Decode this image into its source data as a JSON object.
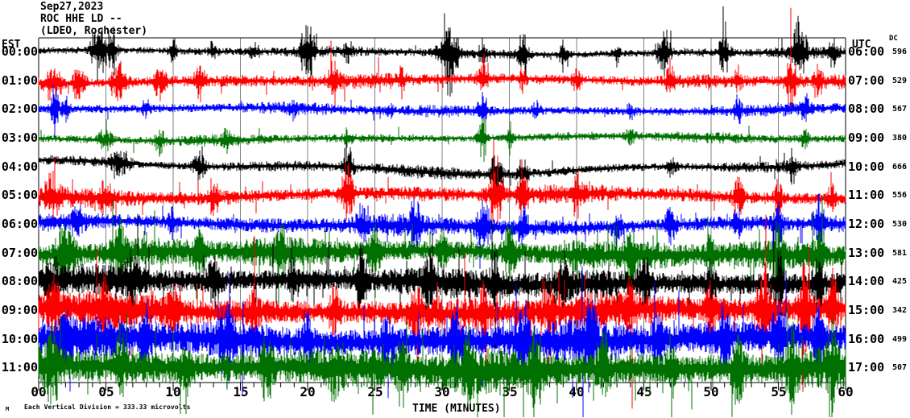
{
  "title_block": {
    "line1": "Sep27,2023",
    "line2": "ROC HHE LD --",
    "line3": "(LDEO, Rochester)"
  },
  "axes": {
    "est_header": "EST",
    "utc_header": "UTC",
    "dc_header": "DC",
    "x_label": "TIME (MINUTES)",
    "x_ticks": [
      "00",
      "05",
      "10",
      "15",
      "20",
      "25",
      "30",
      "35",
      "40",
      "45",
      "50",
      "55",
      "60"
    ]
  },
  "footer": {
    "marker": "M",
    "note": "Each Vertical Division = 333.33 microvolts"
  },
  "colors": {
    "black": "#000000",
    "red": "#ff0000",
    "blue": "#0000ff",
    "green": "#007000",
    "grid": "#808080",
    "frame": "#000000"
  },
  "chart_data": {
    "type": "line",
    "subtype": "helicorder-seismogram",
    "title": "ROC HHE LD -- (LDEO, Rochester) Sep27,2023",
    "xlabel": "TIME (MINUTES)",
    "x_range": [
      0,
      60
    ],
    "x_major_tick_minutes": 5,
    "x_minor_tick_minutes": 1,
    "grid": "vertical gray lines every 5 minutes",
    "scale_note": "Each Vertical Division = 333.33 microvolts",
    "rows": [
      {
        "est": "00:00",
        "utc": "06:00",
        "dc": "596",
        "color": "black",
        "render": {
          "seed": 11,
          "amp": 6,
          "wander": 2,
          "spike_prob": 0.02,
          "fat": 1.8,
          "events": [
            [
              4.5,
              38,
              6
            ],
            [
              5.5,
              30,
              4
            ],
            [
              10,
              22,
              3
            ],
            [
              13,
              14,
              3
            ],
            [
              16,
              10,
              4
            ],
            [
              20,
              40,
              5
            ],
            [
              23,
              12,
              3
            ],
            [
              30.5,
              48,
              7
            ],
            [
              33,
              15,
              3
            ],
            [
              36,
              36,
              4
            ],
            [
              39,
              16,
              3
            ],
            [
              43,
              12,
              3
            ],
            [
              46.5,
              34,
              5
            ],
            [
              51,
              30,
              4
            ],
            [
              56.5,
              40,
              6
            ],
            [
              59,
              18,
              3
            ]
          ]
        }
      },
      {
        "est": "01:00",
        "utc": "07:00",
        "dc": "529",
        "color": "red",
        "render": {
          "seed": 22,
          "amp": 8,
          "wander": 2,
          "spike_prob": 0.03,
          "fat": 1.8,
          "events": [
            [
              1,
              20,
              8
            ],
            [
              3,
              25,
              5
            ],
            [
              6,
              28,
              6
            ],
            [
              9,
              22,
              5
            ],
            [
              12,
              18,
              4
            ],
            [
              22,
              26,
              4
            ],
            [
              27,
              14,
              3
            ],
            [
              33,
              22,
              4
            ],
            [
              36,
              12,
              3
            ],
            [
              40,
              16,
              3
            ],
            [
              47,
              20,
              4
            ],
            [
              52,
              14,
              3
            ],
            [
              56,
              30,
              5
            ],
            [
              58,
              20,
              3
            ]
          ]
        }
      },
      {
        "est": "02:00",
        "utc": "08:00",
        "dc": "567",
        "color": "blue",
        "render": {
          "seed": 33,
          "amp": 7,
          "wander": 2,
          "spike_prob": 0.02,
          "fat": 1.8,
          "events": [
            [
              1.2,
              30,
              3
            ],
            [
              2,
              20,
              3
            ],
            [
              8,
              10,
              3
            ],
            [
              19,
              12,
              3
            ],
            [
              26,
              10,
              3
            ],
            [
              33,
              26,
              4
            ],
            [
              37,
              12,
              3
            ],
            [
              44,
              10,
              3
            ],
            [
              52,
              16,
              3
            ],
            [
              57,
              20,
              3
            ]
          ]
        }
      },
      {
        "est": "03:00",
        "utc": "09:00",
        "dc": "380",
        "color": "green",
        "render": {
          "seed": 44,
          "amp": 6,
          "wander": 2,
          "spike_prob": 0.02,
          "fat": 1.8,
          "events": [
            [
              5,
              10,
              6
            ],
            [
              9,
              16,
              4
            ],
            [
              14,
              12,
              4
            ],
            [
              23,
              10,
              3
            ],
            [
              33,
              24,
              4
            ],
            [
              35,
              20,
              3
            ],
            [
              44,
              8,
              4
            ],
            [
              57,
              12,
              3
            ]
          ]
        }
      },
      {
        "est": "04:00",
        "utc": "10:00",
        "dc": "666",
        "color": "black",
        "render": {
          "seed": 55,
          "amp": 7,
          "wander": 6,
          "spike_prob": 0.02,
          "fat": 1.8,
          "events": [
            [
              6,
              18,
              8
            ],
            [
              12,
              20,
              5
            ],
            [
              23,
              26,
              4
            ],
            [
              34,
              30,
              5
            ],
            [
              36,
              24,
              4
            ],
            [
              47,
              10,
              4
            ],
            [
              56,
              16,
              4
            ]
          ]
        }
      },
      {
        "est": "05:00",
        "utc": "11:00",
        "dc": "556",
        "color": "red",
        "render": {
          "seed": 66,
          "amp": 10,
          "wander": 3,
          "spike_prob": 0.03,
          "fat": 1.5,
          "events": [
            [
              1,
              24,
              6
            ],
            [
              5,
              18,
              5
            ],
            [
              13,
              20,
              4
            ],
            [
              23,
              34,
              5
            ],
            [
              34,
              36,
              6
            ],
            [
              36,
              30,
              4
            ],
            [
              40,
              20,
              4
            ],
            [
              52,
              26,
              4
            ],
            [
              55,
              20,
              3
            ],
            [
              59,
              24,
              3
            ]
          ]
        }
      },
      {
        "est": "06:00",
        "utc": "12:00",
        "dc": "530",
        "color": "blue",
        "render": {
          "seed": 77,
          "amp": 11,
          "wander": 3,
          "spike_prob": 0.04,
          "fat": 1.5,
          "events": [
            [
              3,
              14,
              5
            ],
            [
              10,
              12,
              4
            ],
            [
              24,
              26,
              4
            ],
            [
              28,
              30,
              4
            ],
            [
              33,
              40,
              5
            ],
            [
              36,
              26,
              4
            ],
            [
              43,
              18,
              4
            ],
            [
              47,
              22,
              4
            ],
            [
              52,
              18,
              3
            ],
            [
              55,
              26,
              3
            ],
            [
              58,
              30,
              4
            ]
          ]
        }
      },
      {
        "est": "07:00",
        "utc": "13:00",
        "dc": "581",
        "color": "green",
        "render": {
          "seed": 88,
          "amp": 16,
          "wander": 3,
          "spike_prob": 0.05,
          "fat": 1.1,
          "events": [
            [
              2,
              28,
              8
            ],
            [
              6,
              24,
              6
            ],
            [
              12,
              18,
              5
            ],
            [
              18,
              16,
              5
            ],
            [
              25,
              24,
              5
            ],
            [
              30,
              18,
              4
            ],
            [
              35,
              34,
              5
            ],
            [
              40,
              20,
              4
            ],
            [
              44,
              26,
              4
            ],
            [
              50,
              18,
              4
            ],
            [
              55,
              28,
              5
            ],
            [
              58,
              30,
              4
            ]
          ]
        }
      },
      {
        "est": "08:00",
        "utc": "14:00",
        "dc": "425",
        "color": "black",
        "render": {
          "seed": 99,
          "amp": 17,
          "wander": 3,
          "spike_prob": 0.05,
          "fat": 1.1,
          "events": [
            [
              1,
              20,
              6
            ],
            [
              7,
              24,
              5
            ],
            [
              13,
              26,
              5
            ],
            [
              19,
              20,
              4
            ],
            [
              24,
              28,
              5
            ],
            [
              29,
              22,
              4
            ],
            [
              34,
              30,
              5
            ],
            [
              39,
              24,
              4
            ],
            [
              45,
              26,
              5
            ],
            [
              50,
              22,
              4
            ],
            [
              55,
              30,
              5
            ],
            [
              58,
              26,
              4
            ]
          ]
        }
      },
      {
        "est": "09:00",
        "utc": "15:00",
        "dc": "342",
        "color": "red",
        "render": {
          "seed": 110,
          "amp": 19,
          "wander": 3,
          "spike_prob": 0.06,
          "fat": 1.1,
          "events": [
            [
              1,
              26,
              6
            ],
            [
              5,
              30,
              5
            ],
            [
              10,
              22,
              5
            ],
            [
              16,
              20,
              4
            ],
            [
              22,
              24,
              4
            ],
            [
              28,
              26,
              4
            ],
            [
              33,
              22,
              4
            ],
            [
              38,
              24,
              4
            ],
            [
              44,
              20,
              4
            ],
            [
              50,
              30,
              5
            ],
            [
              54,
              40,
              6
            ],
            [
              57,
              44,
              5
            ],
            [
              59,
              40,
              4
            ]
          ]
        }
      },
      {
        "est": "10:00",
        "utc": "16:00",
        "dc": "499",
        "color": "blue",
        "render": {
          "seed": 121,
          "amp": 22,
          "wander": 3,
          "spike_prob": 0.06,
          "fat": 1.1,
          "events": [
            [
              2,
              24,
              6
            ],
            [
              8,
              26,
              5
            ],
            [
              14,
              28,
              5
            ],
            [
              20,
              24,
              4
            ],
            [
              26,
              30,
              5
            ],
            [
              31,
              26,
              4
            ],
            [
              36,
              34,
              5
            ],
            [
              41,
              30,
              5
            ],
            [
              46,
              26,
              4
            ],
            [
              51,
              28,
              4
            ],
            [
              55,
              40,
              5
            ],
            [
              58,
              44,
              4
            ]
          ]
        }
      },
      {
        "est": "11:00",
        "utc": "17:00",
        "dc": "507",
        "color": "green",
        "render": {
          "seed": 132,
          "amp": 24,
          "wander": 3,
          "spike_prob": 0.07,
          "fat": 1.1,
          "events": [
            [
              1,
              30,
              6
            ],
            [
              6,
              28,
              5
            ],
            [
              11,
              26,
              5
            ],
            [
              17,
              30,
              5
            ],
            [
              22,
              26,
              4
            ],
            [
              27,
              32,
              5
            ],
            [
              32,
              28,
              4
            ],
            [
              37,
              34,
              5
            ],
            [
              42,
              30,
              5
            ],
            [
              47,
              28,
              4
            ],
            [
              52,
              32,
              5
            ],
            [
              56,
              36,
              5
            ],
            [
              59,
              34,
              4
            ]
          ]
        }
      }
    ]
  }
}
